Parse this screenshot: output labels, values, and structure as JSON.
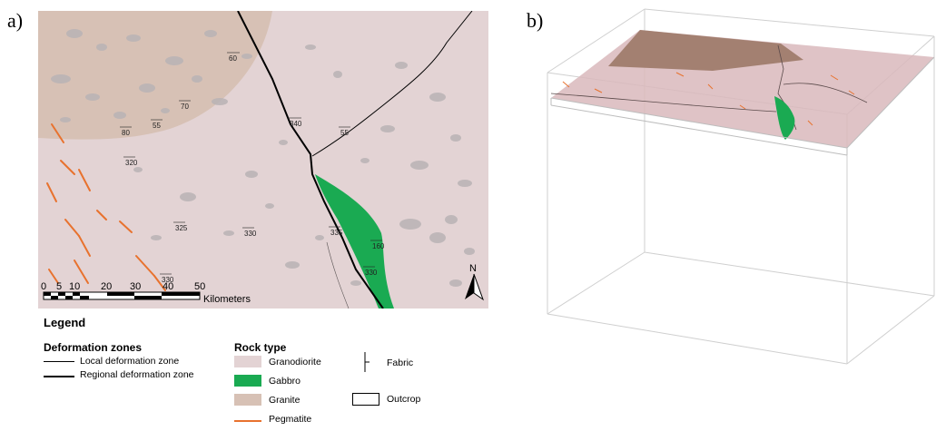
{
  "panels": {
    "a": "a)",
    "b": "b)"
  },
  "colors": {
    "granodiorite": "#e3d3d4",
    "granite": "#d7c1b5",
    "gabbro": "#1aaa52",
    "outcrop": "#b9b3b5",
    "pegmatite": "#e8722e",
    "block_top": "#d9b8bc",
    "block_granite": "#a38071"
  },
  "map": {
    "fabric_labels": [
      "60",
      "70",
      "55",
      "80",
      "340",
      "55",
      "320",
      "325",
      "330",
      "335",
      "160",
      "330",
      "330"
    ],
    "scale": {
      "ticks": [
        "0",
        "5",
        "10",
        "20",
        "30",
        "40",
        "50"
      ],
      "unit": "Kilometers"
    },
    "north": "N"
  },
  "legend": {
    "title": "Legend",
    "deformation_title": "Deformation zones",
    "local_zone": "Local deformation zone",
    "regional_zone": "Regional deformation zone",
    "rock_title": "Rock type",
    "granodiorite": "Granodiorite",
    "gabbro": "Gabbro",
    "granite": "Granite",
    "pegmatite": "Pegmatite",
    "fabric": "Fabric",
    "outcrop": "Outcrop"
  }
}
